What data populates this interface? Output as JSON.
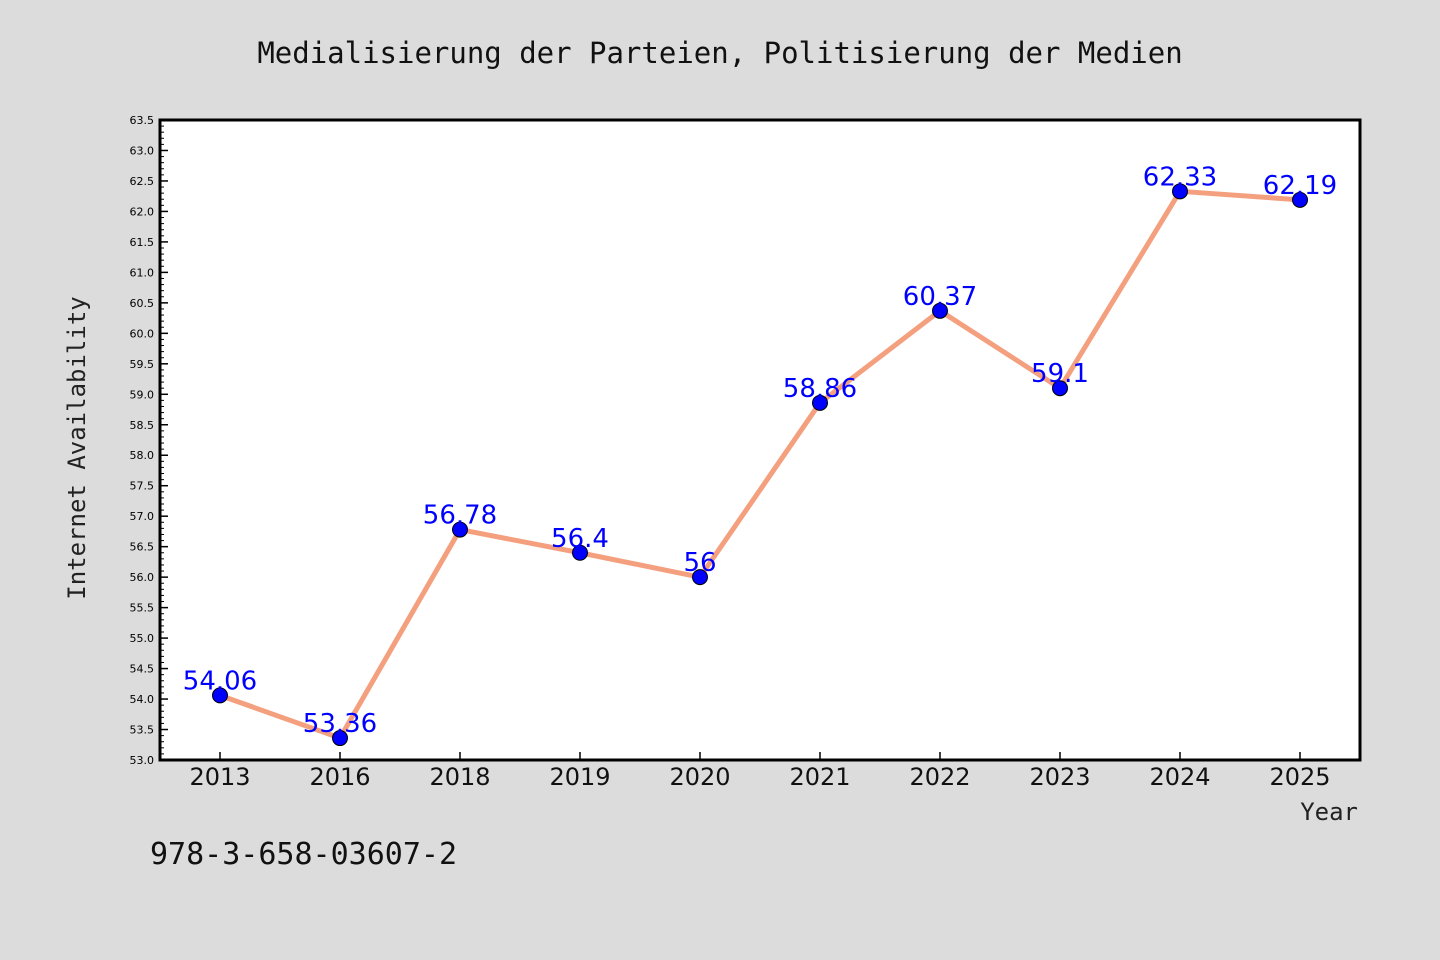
{
  "chart_data": {
    "type": "line",
    "title": "Medialisierung der Parteien, Politisierung der Medien",
    "xlabel": "Year",
    "ylabel": "Internet Availability",
    "categories": [
      "2013",
      "2016",
      "2018",
      "2019",
      "2020",
      "2021",
      "2022",
      "2023",
      "2024",
      "2025"
    ],
    "values": [
      54.06,
      53.36,
      56.78,
      56.4,
      56,
      58.86,
      60.37,
      59.1,
      62.33,
      62.19
    ],
    "data_labels": [
      "54.06",
      "53.36",
      "56.78",
      "56.4",
      "56",
      "58.86",
      "60.37",
      "59.1",
      "62.33",
      "62.19"
    ],
    "ylim": [
      53.0,
      63.5
    ],
    "yticks": [
      "53.0",
      "53.5",
      "54.0",
      "54.5",
      "55.0",
      "55.5",
      "56.0",
      "56.5",
      "57.0",
      "57.5",
      "58.0",
      "58.5",
      "59.0",
      "59.5",
      "60.0",
      "60.5",
      "61.0",
      "61.5",
      "62.0",
      "62.5",
      "63.0",
      "63.5"
    ],
    "grid": false,
    "line_color": "#f4a07f",
    "marker_color": "#0000ff",
    "label_color": "#0000ff",
    "background": "#dcdcdc",
    "plot_background": "#ffffff"
  },
  "footer_text": "978-3-658-03607-2"
}
